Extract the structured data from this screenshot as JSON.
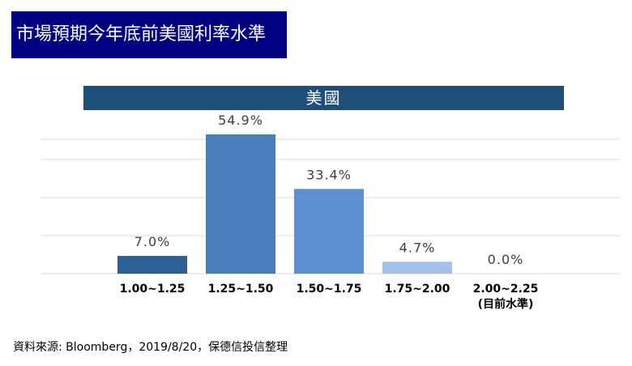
{
  "header": {
    "title": "市場預期今年底前美國利率水準"
  },
  "chart_data": {
    "type": "bar",
    "title": "美國",
    "categories": [
      "1.00~1.25",
      "1.25~1.50",
      "1.50~1.75",
      "1.75~2.00",
      "2.00~2.25"
    ],
    "category_sublabels": [
      "",
      "",
      "",
      "",
      "(目前水準)"
    ],
    "values": [
      7.0,
      54.9,
      33.4,
      4.7,
      0.0
    ],
    "value_labels": [
      "7.0%",
      "54.9%",
      "33.4%",
      "4.7%",
      "0.0%"
    ],
    "bar_colors": [
      "#2E5F94",
      "#4A7EBB",
      "#5B8FD0",
      "#A3C0E8",
      "#C9DAF0"
    ],
    "ylim": [
      0,
      60
    ],
    "grid": true
  },
  "footer": {
    "source": "資料來源: Bloomberg，2019/8/20，保德信投信整理"
  }
}
